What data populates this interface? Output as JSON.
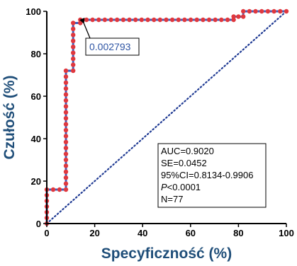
{
  "chart_data": {
    "type": "line",
    "xlabel": "Specyficzność (%)",
    "ylabel": "Czułość (%)",
    "xlim": [
      0,
      100
    ],
    "ylim": [
      0,
      100
    ],
    "x_ticks": [
      "0",
      "20",
      "40",
      "60",
      "80",
      "100"
    ],
    "y_ticks": [
      "0",
      "20",
      "40",
      "60",
      "80",
      "100"
    ],
    "grid": false,
    "series": [
      {
        "x": [
          0,
          0,
          8,
          8,
          11,
          11,
          14,
          14,
          78,
          78,
          82,
          82,
          100
        ],
        "y": [
          0,
          16,
          16,
          72,
          72,
          94.5,
          94.5,
          96,
          96,
          97.5,
          97.5,
          100,
          100
        ]
      }
    ],
    "reference_line": {
      "x": [
        0,
        100
      ],
      "y": [
        0,
        100
      ],
      "style": "dotted"
    },
    "annotation": {
      "text": "0.002793",
      "point": [
        14,
        96
      ]
    },
    "stats": [
      {
        "text": "AUC=0.9020"
      },
      {
        "text": "SE=0.0452"
      },
      {
        "text": "95%CI=0.8134-0.9906"
      },
      {
        "prefix": "P",
        "text": "<0.0001"
      },
      {
        "text": "N=77"
      }
    ],
    "colors": {
      "curve": "#3a5fbf",
      "markers": "#e0383e",
      "reference": "#1f3a93",
      "axis_title": "#1f4e79",
      "annotation": "#2f55a4"
    }
  }
}
